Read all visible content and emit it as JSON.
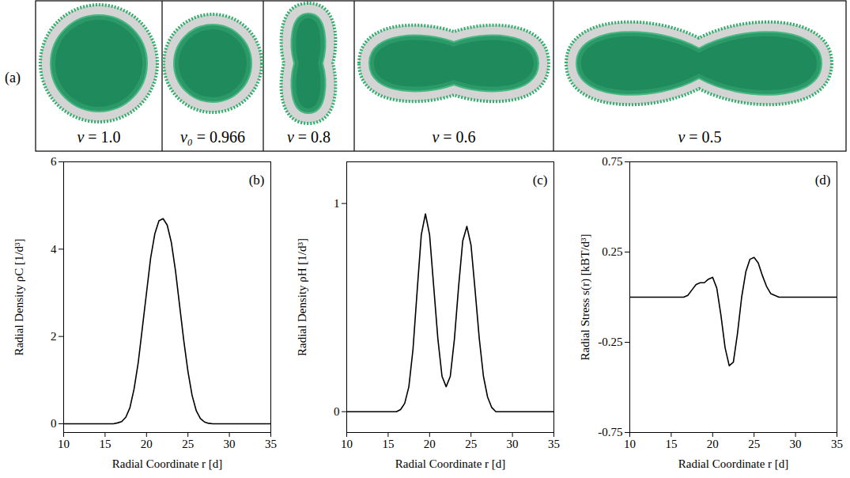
{
  "panel_a": {
    "label": "(a)",
    "shapes": [
      {
        "label": "v = 1.0"
      },
      {
        "label": "v₀ = 0.966"
      },
      {
        "label": "v = 0.8"
      },
      {
        "label": "v = 0.6"
      },
      {
        "label": "v = 0.5"
      }
    ]
  },
  "chart_data": [
    {
      "type": "line",
      "panel": "(b)",
      "color": "#000000",
      "xlabel": "Radial Coordinate r [d]",
      "ylabel": "Radial Density ρC [1/d³]",
      "xlim": [
        10,
        35
      ],
      "xticks": [
        10,
        15,
        20,
        25,
        30,
        35
      ],
      "ylim": [
        -0.2,
        6
      ],
      "yticks": [
        0,
        2,
        4,
        6
      ],
      "x": [
        10,
        10.5,
        11,
        11.5,
        12,
        12.5,
        13,
        13.5,
        14,
        14.5,
        15,
        15.5,
        16,
        16.5,
        17,
        17.5,
        18,
        18.5,
        19,
        19.5,
        20,
        20.5,
        21,
        21.5,
        22,
        22.5,
        23,
        23.5,
        24,
        24.5,
        25,
        25.5,
        26,
        26.5,
        27,
        27.5,
        28,
        28.5,
        29,
        29.5,
        30,
        30.5,
        31,
        31.5,
        32,
        32.5,
        33,
        33.5,
        34,
        34.5,
        35
      ],
      "values": [
        0,
        0,
        0,
        0,
        0,
        0,
        0,
        0,
        0,
        0,
        0,
        0,
        0,
        0.02,
        0.05,
        0.15,
        0.37,
        0.8,
        1.4,
        2.2,
        3.0,
        3.8,
        4.35,
        4.65,
        4.7,
        4.55,
        4.15,
        3.5,
        2.7,
        1.9,
        1.2,
        0.65,
        0.3,
        0.12,
        0.04,
        0.01,
        0,
        0,
        0,
        0,
        0,
        0,
        0,
        0,
        0,
        0,
        0,
        0,
        0,
        0,
        0
      ]
    },
    {
      "type": "line",
      "panel": "(c)",
      "color": "#000000",
      "xlabel": "Radial Coordinate r [d]",
      "ylabel": "Radial Density ρH [1/d³]",
      "xlim": [
        10,
        35
      ],
      "xticks": [
        10,
        15,
        20,
        25,
        30,
        35
      ],
      "ylim": [
        -0.1,
        1.2
      ],
      "yticks": [
        0,
        1
      ],
      "x": [
        10,
        10.5,
        11,
        11.5,
        12,
        12.5,
        13,
        13.5,
        14,
        14.5,
        15,
        15.5,
        16,
        16.5,
        17,
        17.5,
        18,
        18.5,
        19,
        19.5,
        20,
        20.5,
        21,
        21.5,
        22,
        22.5,
        23,
        23.5,
        24,
        24.5,
        25,
        25.5,
        26,
        26.5,
        27,
        27.5,
        28,
        28.5,
        29,
        29.5,
        30,
        30.5,
        31,
        31.5,
        32,
        32.5,
        33,
        33.5,
        34,
        34.5,
        35
      ],
      "values": [
        0,
        0,
        0,
        0,
        0,
        0,
        0,
        0,
        0,
        0,
        0,
        0,
        0,
        0.01,
        0.04,
        0.12,
        0.3,
        0.58,
        0.85,
        0.95,
        0.85,
        0.6,
        0.35,
        0.17,
        0.12,
        0.17,
        0.35,
        0.6,
        0.82,
        0.89,
        0.8,
        0.58,
        0.35,
        0.17,
        0.07,
        0.02,
        0,
        0,
        0,
        0,
        0,
        0,
        0,
        0,
        0,
        0,
        0,
        0,
        0,
        0,
        0
      ]
    },
    {
      "type": "line",
      "panel": "(d)",
      "color": "#000000",
      "xlabel": "Radial Coordinate r [d]",
      "ylabel": "Radial Stress s(r) [kBT/d³]",
      "xlim": [
        10,
        35
      ],
      "xticks": [
        10,
        15,
        20,
        25,
        30,
        35
      ],
      "ylim": [
        -0.75,
        0.75
      ],
      "yticks": [
        -0.75,
        -0.25,
        0.25,
        0.75
      ],
      "x": [
        10,
        10.5,
        11,
        11.5,
        12,
        12.5,
        13,
        13.5,
        14,
        14.5,
        15,
        15.5,
        16,
        16.5,
        17,
        17.5,
        18,
        18.5,
        19,
        19.5,
        20,
        20.5,
        21,
        21.5,
        22,
        22.5,
        23,
        23.5,
        24,
        24.5,
        25,
        25.5,
        26,
        26.5,
        27,
        27.5,
        28,
        28.5,
        29,
        29.5,
        30,
        30.5,
        31,
        31.5,
        32,
        32.5,
        33,
        33.5,
        34,
        34.5,
        35
      ],
      "values": [
        0,
        0,
        0,
        0,
        0,
        0,
        0,
        0,
        0,
        0,
        0,
        0,
        0,
        0,
        0.01,
        0.04,
        0.07,
        0.08,
        0.08,
        0.1,
        0.11,
        0.05,
        -0.1,
        -0.28,
        -0.38,
        -0.36,
        -0.2,
        0.0,
        0.14,
        0.21,
        0.22,
        0.19,
        0.12,
        0.06,
        0.02,
        0.01,
        0,
        0,
        0,
        0,
        0,
        0,
        0,
        0,
        0,
        0,
        0,
        0,
        0,
        0,
        0
      ]
    }
  ]
}
